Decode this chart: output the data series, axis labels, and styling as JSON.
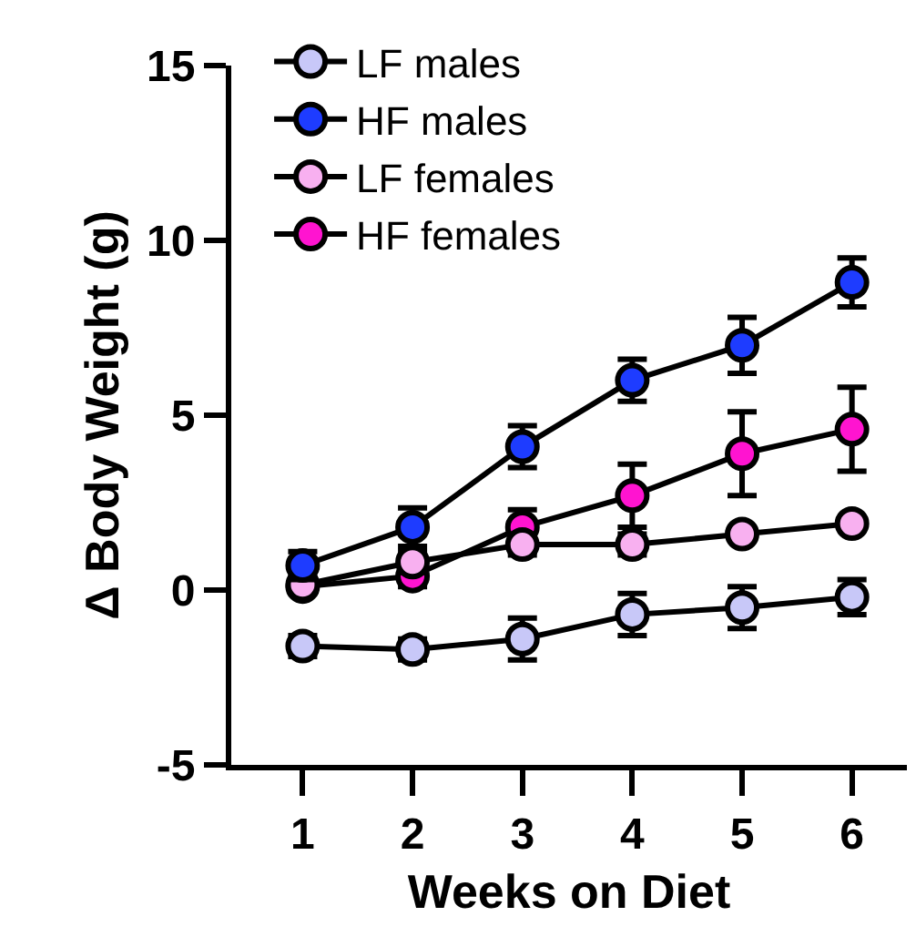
{
  "chart_data": {
    "type": "line",
    "xlabel": "Weeks on Diet",
    "ylabel": "Δ Body Weight (g)",
    "x": [
      1,
      2,
      3,
      4,
      5,
      6
    ],
    "xlim": [
      0.35,
      6.5
    ],
    "xticks": [
      1,
      2,
      3,
      4,
      5,
      6
    ],
    "ylim": [
      -5,
      15
    ],
    "yticks": [
      -5,
      0,
      5,
      10,
      15
    ],
    "series": [
      {
        "name": "LF males",
        "color": "#c8c8f8",
        "values": [
          -1.6,
          -1.7,
          -1.4,
          -0.7,
          -0.5,
          -0.2
        ],
        "errors": [
          0.3,
          0.3,
          0.6,
          0.6,
          0.6,
          0.5
        ]
      },
      {
        "name": "HF males",
        "color": "#1e3cff",
        "values": [
          0.7,
          1.8,
          4.1,
          6.0,
          7.0,
          8.8
        ],
        "errors": [
          0.4,
          0.55,
          0.6,
          0.6,
          0.8,
          0.7
        ]
      },
      {
        "name": "LF females",
        "color": "#f8b0f0",
        "values": [
          0.15,
          0.8,
          1.3,
          1.3,
          1.6,
          1.9
        ],
        "errors": [
          0.2,
          0.3,
          0.3,
          0.3,
          null,
          null
        ]
      },
      {
        "name": "HF females",
        "color": "#ff14d0",
        "values": [
          0.1,
          0.4,
          1.8,
          2.7,
          3.9,
          4.6
        ],
        "errors": [
          null,
          0.3,
          0.5,
          0.9,
          1.2,
          1.2
        ]
      }
    ],
    "legend": "top",
    "grid": false,
    "marker": "circle",
    "line_style": "solid"
  }
}
